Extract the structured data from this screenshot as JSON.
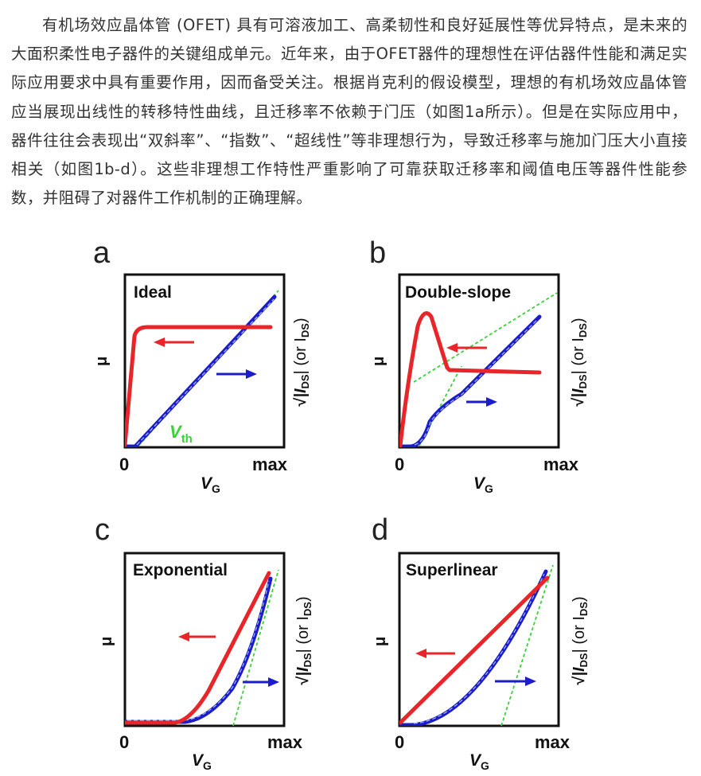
{
  "article": {
    "paragraph": "有机场效应晶体管 (OFET) 具有可溶液加工、高柔韧性和良好延展性等优异特点，是未来的大面积柔性电子器件的关键组成单元。近年来，由于OFET器件的理想性在评估器件性能和满足实际应用要求中具有重要作用，因而备受关注。根据肖克利的假设模型，理想的有机场效应晶体管应当展现出线性的转移特性曲线，且迁移率不依赖于门压（如图1a所示）。但是在实际应用中，器件往往会表现出“双斜率”、“指数”、“超线性”等非理想行为，导致迁移率与施加门压大小直接相关（如图1b-d）。这些非理想工作特性严重影响了可靠获取迁移率和阈值电压等器件性能参数，并阻碍了对器件工作机制的正确理解。"
  },
  "figure": {
    "colors": {
      "mu": "#e8262a",
      "ids": "#1c1cc8",
      "fit": "#3bd13b",
      "frame": "#111111"
    },
    "common": {
      "y_left": "μ",
      "y_right_sqrt_part": "|I",
      "y_right_sub": "DS",
      "y_right_tail": "| (or I",
      "y_right_tail_sub": "DS",
      "y_right_close": ")",
      "x_axis": "V",
      "x_axis_sub": "G",
      "x_zero": "0",
      "x_max": "max"
    },
    "panels": [
      {
        "letter": "a",
        "title": "Ideal",
        "extra_label": "V",
        "extra_label_sub": "th"
      },
      {
        "letter": "b",
        "title": "Double-slope"
      },
      {
        "letter": "c",
        "title": "Exponential"
      },
      {
        "letter": "d",
        "title": "Superlinear"
      }
    ]
  }
}
